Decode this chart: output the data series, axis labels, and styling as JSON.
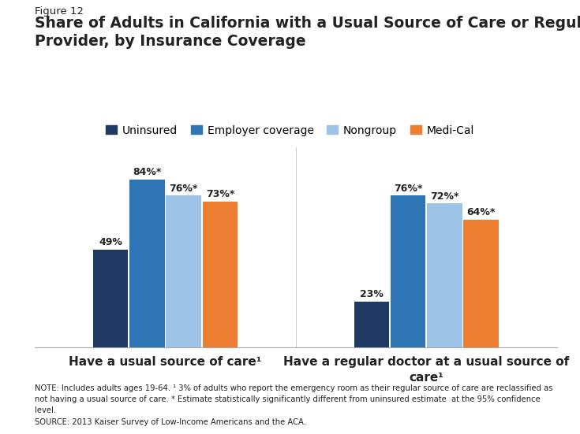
{
  "figure_label": "Figure 12",
  "title": "Share of Adults in California with a Usual Source of Care or Regular\nProvider, by Insurance Coverage",
  "series_names": [
    "Uninsured",
    "Employer coverage",
    "Nongroup",
    "Medi-Cal"
  ],
  "group_labels": [
    "Have a usual source of care¹",
    "Have a regular doctor at a usual source of\ncare¹"
  ],
  "values": [
    [
      49,
      23
    ],
    [
      84,
      76
    ],
    [
      76,
      72
    ],
    [
      73,
      64
    ]
  ],
  "bar_labels": [
    [
      "49%",
      "23%"
    ],
    [
      "84%*",
      "76%*"
    ],
    [
      "76%*",
      "72%*"
    ],
    [
      "73%*",
      "64%*"
    ]
  ],
  "colors": [
    "#1f3864",
    "#2e75b6",
    "#9dc3e6",
    "#ed7d31"
  ],
  "ylim": [
    0,
    100
  ],
  "note_line1": "NOTE: Includes adults ages 19-64. ¹ 3% of adults who report the emergency room as their regular source of care are reclassified as",
  "note_line2": "not having a usual source of care. * Estimate statistically significantly different from uninsured estimate  at the 95% confidence",
  "note_line3": "level.",
  "source": "SOURCE: 2013 Kaiser Survey of Low-Income Americans and the ACA.",
  "background_color": "#ffffff"
}
